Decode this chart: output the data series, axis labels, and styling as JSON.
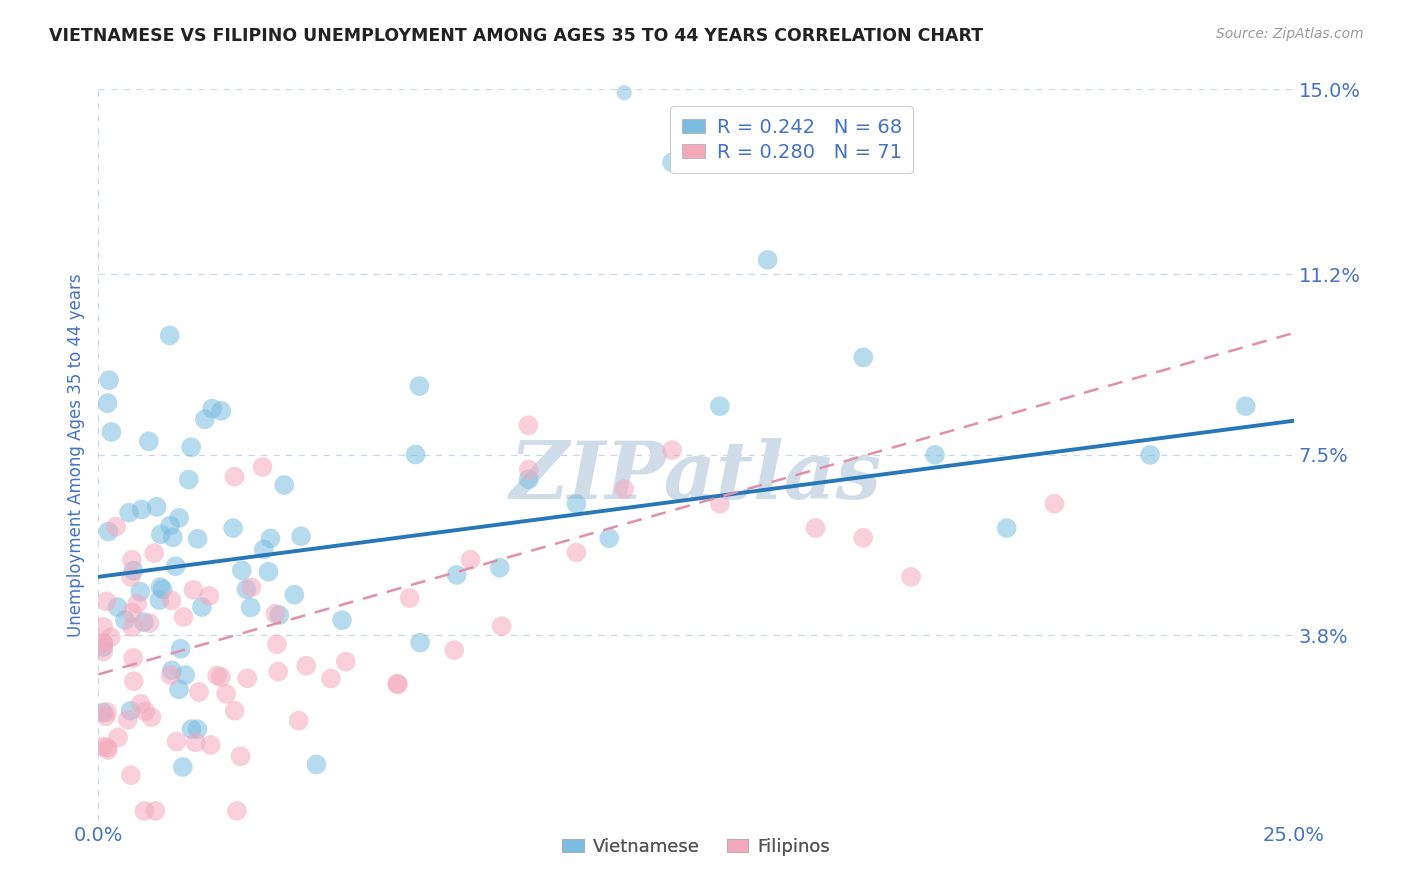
{
  "title": "VIETNAMESE VS FILIPINO UNEMPLOYMENT AMONG AGES 35 TO 44 YEARS CORRELATION CHART",
  "source": "Source: ZipAtlas.com",
  "ylabel": "Unemployment Among Ages 35 to 44 years",
  "xlim": [
    0,
    0.25
  ],
  "ylim": [
    0,
    0.15
  ],
  "ytick_labels": [
    "3.8%",
    "7.5%",
    "11.2%",
    "15.0%"
  ],
  "ytick_values": [
    0.038,
    0.075,
    0.112,
    0.15
  ],
  "vietnamese_color": "#7bbde0",
  "filipino_color": "#f4a8bc",
  "trend_vietnamese_color": "#2878b8",
  "trend_filipino_color": "#e090a8",
  "legend_R_vietnamese": "R = 0.242",
  "legend_N_vietnamese": "N = 68",
  "legend_R_filipino": "R = 0.280",
  "legend_N_filipino": "N = 71",
  "watermark": "ZIPatlas",
  "watermark_color": "#d0dde8",
  "background_color": "#ffffff",
  "title_color": "#222222",
  "tick_label_color": "#4472c4",
  "grid_color": "#c8d8ea",
  "viet_trend_x0": 0.0,
  "viet_trend_y0": 0.05,
  "viet_trend_x1": 0.25,
  "viet_trend_y1": 0.082,
  "fil_trend_x0": 0.0,
  "fil_trend_y0": 0.03,
  "fil_trend_x1": 0.25,
  "fil_trend_y1": 0.1
}
